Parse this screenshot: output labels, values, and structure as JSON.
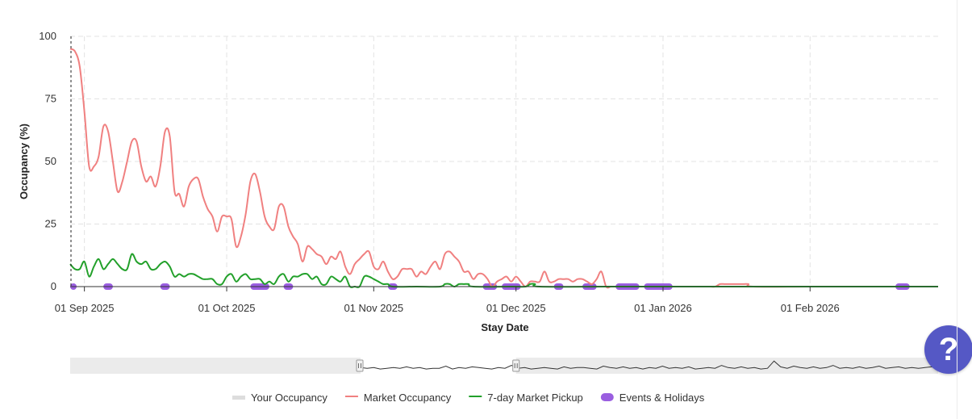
{
  "chart_data": {
    "type": "line",
    "xlabel": "Stay Date",
    "ylabel": "Occupancy (%)",
    "ylim": [
      0,
      100
    ],
    "xlim": [
      "2025-08-29",
      "2026-02-28"
    ],
    "grid": true,
    "legend_position": "bottom",
    "y_ticks": [
      "0",
      "25",
      "50",
      "75",
      "100"
    ],
    "x_ticks": [
      {
        "date": "2025-09-01",
        "label": "01 Sep 2025"
      },
      {
        "date": "2025-10-01",
        "label": "01 Oct 2025"
      },
      {
        "date": "2025-11-01",
        "label": "01 Nov 2025"
      },
      {
        "date": "2025-12-01",
        "label": "01 Dec 2025"
      },
      {
        "date": "2026-01-01",
        "label": "01 Jan 2026"
      },
      {
        "date": "2026-02-01",
        "label": "01 Feb 2026"
      }
    ],
    "series": [
      {
        "name": "Your Occupancy",
        "color": "#dddddd",
        "points": []
      },
      {
        "name": "Market Occupancy",
        "color": "#f08080",
        "points": [
          [
            "2025-08-29",
            95
          ],
          [
            "2025-08-30",
            94
          ],
          [
            "2025-08-31",
            88
          ],
          [
            "2025-09-01",
            70
          ],
          [
            "2025-09-02",
            48
          ],
          [
            "2025-09-03",
            48
          ],
          [
            "2025-09-04",
            52
          ],
          [
            "2025-09-05",
            64
          ],
          [
            "2025-09-06",
            62
          ],
          [
            "2025-09-07",
            50
          ],
          [
            "2025-09-08",
            38
          ],
          [
            "2025-09-09",
            42
          ],
          [
            "2025-09-10",
            50
          ],
          [
            "2025-09-11",
            58
          ],
          [
            "2025-09-12",
            58
          ],
          [
            "2025-09-13",
            48
          ],
          [
            "2025-09-14",
            42
          ],
          [
            "2025-09-15",
            44
          ],
          [
            "2025-09-16",
            40
          ],
          [
            "2025-09-17",
            48
          ],
          [
            "2025-09-18",
            62
          ],
          [
            "2025-09-19",
            60
          ],
          [
            "2025-09-20",
            38
          ],
          [
            "2025-09-21",
            37
          ],
          [
            "2025-09-22",
            32
          ],
          [
            "2025-09-23",
            40
          ],
          [
            "2025-09-24",
            43
          ],
          [
            "2025-09-25",
            43
          ],
          [
            "2025-09-26",
            36
          ],
          [
            "2025-09-27",
            31
          ],
          [
            "2025-09-28",
            28
          ],
          [
            "2025-09-29",
            22
          ],
          [
            "2025-09-30",
            28
          ],
          [
            "2025-10-01",
            28
          ],
          [
            "2025-10-02",
            27
          ],
          [
            "2025-10-03",
            16
          ],
          [
            "2025-10-04",
            20
          ],
          [
            "2025-10-05",
            29
          ],
          [
            "2025-10-06",
            42
          ],
          [
            "2025-10-07",
            45
          ],
          [
            "2025-10-08",
            38
          ],
          [
            "2025-10-09",
            28
          ],
          [
            "2025-10-10",
            24
          ],
          [
            "2025-10-11",
            23
          ],
          [
            "2025-10-12",
            32
          ],
          [
            "2025-10-13",
            32
          ],
          [
            "2025-10-14",
            24
          ],
          [
            "2025-10-15",
            20
          ],
          [
            "2025-10-16",
            17
          ],
          [
            "2025-10-17",
            10
          ],
          [
            "2025-10-18",
            16
          ],
          [
            "2025-10-19",
            15
          ],
          [
            "2025-10-20",
            13
          ],
          [
            "2025-10-21",
            12
          ],
          [
            "2025-10-22",
            9
          ],
          [
            "2025-10-23",
            12
          ],
          [
            "2025-10-24",
            11
          ],
          [
            "2025-10-25",
            14
          ],
          [
            "2025-10-26",
            8
          ],
          [
            "2025-10-27",
            5
          ],
          [
            "2025-10-28",
            9
          ],
          [
            "2025-10-29",
            11
          ],
          [
            "2025-10-30",
            13
          ],
          [
            "2025-10-31",
            14
          ],
          [
            "2025-11-01",
            8
          ],
          [
            "2025-11-02",
            7
          ],
          [
            "2025-11-03",
            10
          ],
          [
            "2025-11-04",
            6
          ],
          [
            "2025-11-05",
            3
          ],
          [
            "2025-11-06",
            4
          ],
          [
            "2025-11-07",
            7
          ],
          [
            "2025-11-08",
            7
          ],
          [
            "2025-11-09",
            7
          ],
          [
            "2025-11-10",
            4
          ],
          [
            "2025-11-11",
            6
          ],
          [
            "2025-11-12",
            5
          ],
          [
            "2025-11-13",
            8
          ],
          [
            "2025-11-14",
            10
          ],
          [
            "2025-11-15",
            7
          ],
          [
            "2025-11-16",
            13
          ],
          [
            "2025-11-17",
            14
          ],
          [
            "2025-11-18",
            12
          ],
          [
            "2025-11-19",
            10
          ],
          [
            "2025-11-20",
            6
          ],
          [
            "2025-11-21",
            6
          ],
          [
            "2025-11-22",
            3
          ],
          [
            "2025-11-23",
            5
          ],
          [
            "2025-11-24",
            5
          ],
          [
            "2025-11-25",
            3
          ],
          [
            "2025-11-26",
            0
          ],
          [
            "2025-11-27",
            2
          ],
          [
            "2025-11-28",
            3
          ],
          [
            "2025-11-29",
            4
          ],
          [
            "2025-11-30",
            2
          ],
          [
            "2025-12-01",
            4
          ],
          [
            "2025-12-02",
            2
          ],
          [
            "2025-12-03",
            0
          ],
          [
            "2025-12-04",
            2
          ],
          [
            "2025-12-05",
            2
          ],
          [
            "2025-12-06",
            2
          ],
          [
            "2025-12-07",
            6
          ],
          [
            "2025-12-08",
            2
          ],
          [
            "2025-12-09",
            2
          ],
          [
            "2025-12-10",
            3
          ],
          [
            "2025-12-11",
            3
          ],
          [
            "2025-12-12",
            3
          ],
          [
            "2025-12-13",
            2
          ],
          [
            "2025-12-14",
            3
          ],
          [
            "2025-12-15",
            3
          ],
          [
            "2025-12-16",
            2
          ],
          [
            "2025-12-17",
            1
          ],
          [
            "2025-12-18",
            3
          ],
          [
            "2025-12-19",
            6
          ],
          [
            "2025-12-20",
            0
          ],
          [
            "2025-12-21",
            0
          ],
          [
            "2025-12-22",
            0
          ],
          [
            "2025-12-23",
            0
          ],
          [
            "2025-12-24",
            0
          ],
          [
            "2025-12-25",
            0
          ],
          [
            "2025-12-26",
            0
          ],
          [
            "2025-12-27",
            0
          ],
          [
            "2025-12-28",
            0
          ],
          [
            "2025-12-29",
            0
          ],
          [
            "2025-12-30",
            0
          ],
          [
            "2025-12-31",
            0
          ],
          [
            "2026-01-01",
            0
          ],
          [
            "2026-01-02",
            0
          ],
          [
            "2026-01-03",
            0
          ],
          [
            "2026-01-04",
            0
          ],
          [
            "2026-01-05",
            0
          ],
          [
            "2026-01-06",
            0
          ],
          [
            "2026-01-07",
            0
          ],
          [
            "2026-01-08",
            0
          ],
          [
            "2026-01-09",
            0
          ],
          [
            "2026-01-10",
            0
          ],
          [
            "2026-01-11",
            0
          ],
          [
            "2026-01-12",
            0
          ],
          [
            "2026-01-13",
            1
          ],
          [
            "2026-01-14",
            1
          ],
          [
            "2026-01-15",
            1
          ],
          [
            "2026-01-16",
            1
          ],
          [
            "2026-01-17",
            1
          ],
          [
            "2026-01-18",
            1
          ],
          [
            "2026-01-19",
            1
          ],
          [
            "2026-01-20",
            0
          ],
          [
            "2026-02-01",
            0
          ],
          [
            "2026-02-15",
            0
          ],
          [
            "2026-02-28",
            0
          ]
        ]
      },
      {
        "name": "7-day Market Pickup",
        "color": "#22a02a",
        "points": [
          [
            "2025-08-29",
            9
          ],
          [
            "2025-08-30",
            7
          ],
          [
            "2025-08-31",
            7
          ],
          [
            "2025-09-01",
            10
          ],
          [
            "2025-09-02",
            4
          ],
          [
            "2025-09-03",
            8
          ],
          [
            "2025-09-04",
            11
          ],
          [
            "2025-09-05",
            7
          ],
          [
            "2025-09-06",
            9
          ],
          [
            "2025-09-07",
            11
          ],
          [
            "2025-09-08",
            9
          ],
          [
            "2025-09-09",
            7
          ],
          [
            "2025-09-10",
            7
          ],
          [
            "2025-09-11",
            13
          ],
          [
            "2025-09-12",
            10
          ],
          [
            "2025-09-13",
            9
          ],
          [
            "2025-09-14",
            10
          ],
          [
            "2025-09-15",
            7
          ],
          [
            "2025-09-16",
            7
          ],
          [
            "2025-09-17",
            9
          ],
          [
            "2025-09-18",
            10
          ],
          [
            "2025-09-19",
            8
          ],
          [
            "2025-09-20",
            4
          ],
          [
            "2025-09-21",
            5
          ],
          [
            "2025-09-22",
            4
          ],
          [
            "2025-09-23",
            5
          ],
          [
            "2025-09-24",
            5
          ],
          [
            "2025-09-25",
            4
          ],
          [
            "2025-09-26",
            3
          ],
          [
            "2025-09-27",
            3
          ],
          [
            "2025-09-28",
            3
          ],
          [
            "2025-09-29",
            1
          ],
          [
            "2025-09-30",
            1
          ],
          [
            "2025-10-01",
            4
          ],
          [
            "2025-10-02",
            5
          ],
          [
            "2025-10-03",
            2
          ],
          [
            "2025-10-04",
            4
          ],
          [
            "2025-10-05",
            5
          ],
          [
            "2025-10-06",
            3
          ],
          [
            "2025-10-07",
            3
          ],
          [
            "2025-10-08",
            3
          ],
          [
            "2025-10-09",
            1
          ],
          [
            "2025-10-10",
            2
          ],
          [
            "2025-10-11",
            1
          ],
          [
            "2025-10-12",
            4
          ],
          [
            "2025-10-13",
            5
          ],
          [
            "2025-10-14",
            2
          ],
          [
            "2025-10-15",
            4
          ],
          [
            "2025-10-16",
            4
          ],
          [
            "2025-10-17",
            5
          ],
          [
            "2025-10-18",
            5
          ],
          [
            "2025-10-19",
            3
          ],
          [
            "2025-10-20",
            4
          ],
          [
            "2025-10-21",
            1
          ],
          [
            "2025-10-22",
            1
          ],
          [
            "2025-10-23",
            4
          ],
          [
            "2025-10-24",
            3
          ],
          [
            "2025-10-25",
            2
          ],
          [
            "2025-10-26",
            4
          ],
          [
            "2025-10-27",
            0
          ],
          [
            "2025-10-28",
            0
          ],
          [
            "2025-10-29",
            0
          ],
          [
            "2025-10-30",
            4
          ],
          [
            "2025-10-31",
            4
          ],
          [
            "2025-11-01",
            3
          ],
          [
            "2025-11-02",
            2
          ],
          [
            "2025-11-03",
            1
          ],
          [
            "2025-11-04",
            1
          ],
          [
            "2025-11-05",
            0
          ],
          [
            "2025-11-10",
            0
          ],
          [
            "2025-11-15",
            0
          ],
          [
            "2025-11-16",
            1
          ],
          [
            "2025-11-17",
            1
          ],
          [
            "2025-11-18",
            0
          ],
          [
            "2025-11-19",
            1
          ],
          [
            "2025-11-20",
            1
          ],
          [
            "2025-11-21",
            1
          ],
          [
            "2025-11-22",
            0
          ],
          [
            "2025-11-30",
            0
          ],
          [
            "2025-12-03",
            0
          ],
          [
            "2025-12-04",
            1
          ],
          [
            "2025-12-05",
            1
          ],
          [
            "2025-12-06",
            0
          ],
          [
            "2025-12-20",
            0
          ],
          [
            "2026-01-01",
            0
          ],
          [
            "2026-02-01",
            0
          ],
          [
            "2026-02-28",
            0
          ]
        ]
      }
    ],
    "events": [
      [
        "2025-08-29",
        "2025-08-30"
      ],
      [
        "2025-09-05",
        "2025-09-07"
      ],
      [
        "2025-09-17",
        "2025-09-19"
      ],
      [
        "2025-10-06",
        "2025-10-10"
      ],
      [
        "2025-10-13",
        "2025-10-15"
      ],
      [
        "2025-11-04",
        "2025-11-06"
      ],
      [
        "2025-11-24",
        "2025-11-27"
      ],
      [
        "2025-11-28",
        "2025-12-02"
      ],
      [
        "2025-12-09",
        "2025-12-11"
      ],
      [
        "2025-12-15",
        "2025-12-18"
      ],
      [
        "2025-12-22",
        "2025-12-27"
      ],
      [
        "2025-12-28",
        "2026-01-03"
      ],
      [
        "2026-02-19",
        "2026-02-22"
      ]
    ],
    "events_name": "Events & Holidays",
    "events_color": "#9a5ee0",
    "navigator": {
      "range_start": "2025-08-29",
      "range_end": "2026-02-28",
      "view_start": "2025-08-29",
      "view_end": "2026-02-28",
      "selected_start": "2025-12-01",
      "selected_end": "2026-05-01",
      "values": [
        3,
        2,
        3,
        1,
        2,
        3,
        2,
        4,
        2,
        3,
        1,
        2,
        2,
        5,
        1,
        3,
        2,
        4,
        3,
        2,
        1,
        3,
        2,
        6,
        2,
        3,
        1,
        2,
        3,
        2,
        1,
        4,
        2,
        3,
        3,
        2,
        1,
        5,
        3,
        2,
        4,
        2,
        3,
        1,
        3,
        2,
        5,
        2,
        3,
        2,
        4,
        1,
        2,
        3,
        2,
        6,
        3,
        2,
        4,
        2,
        3,
        1,
        2,
        12,
        4,
        2,
        5,
        3,
        2,
        4,
        2,
        3,
        6,
        2,
        3,
        2,
        4,
        2,
        3,
        5,
        2,
        3,
        4,
        2,
        3,
        2,
        3,
        4,
        2
      ]
    }
  },
  "ui": {
    "help_label": "?"
  }
}
